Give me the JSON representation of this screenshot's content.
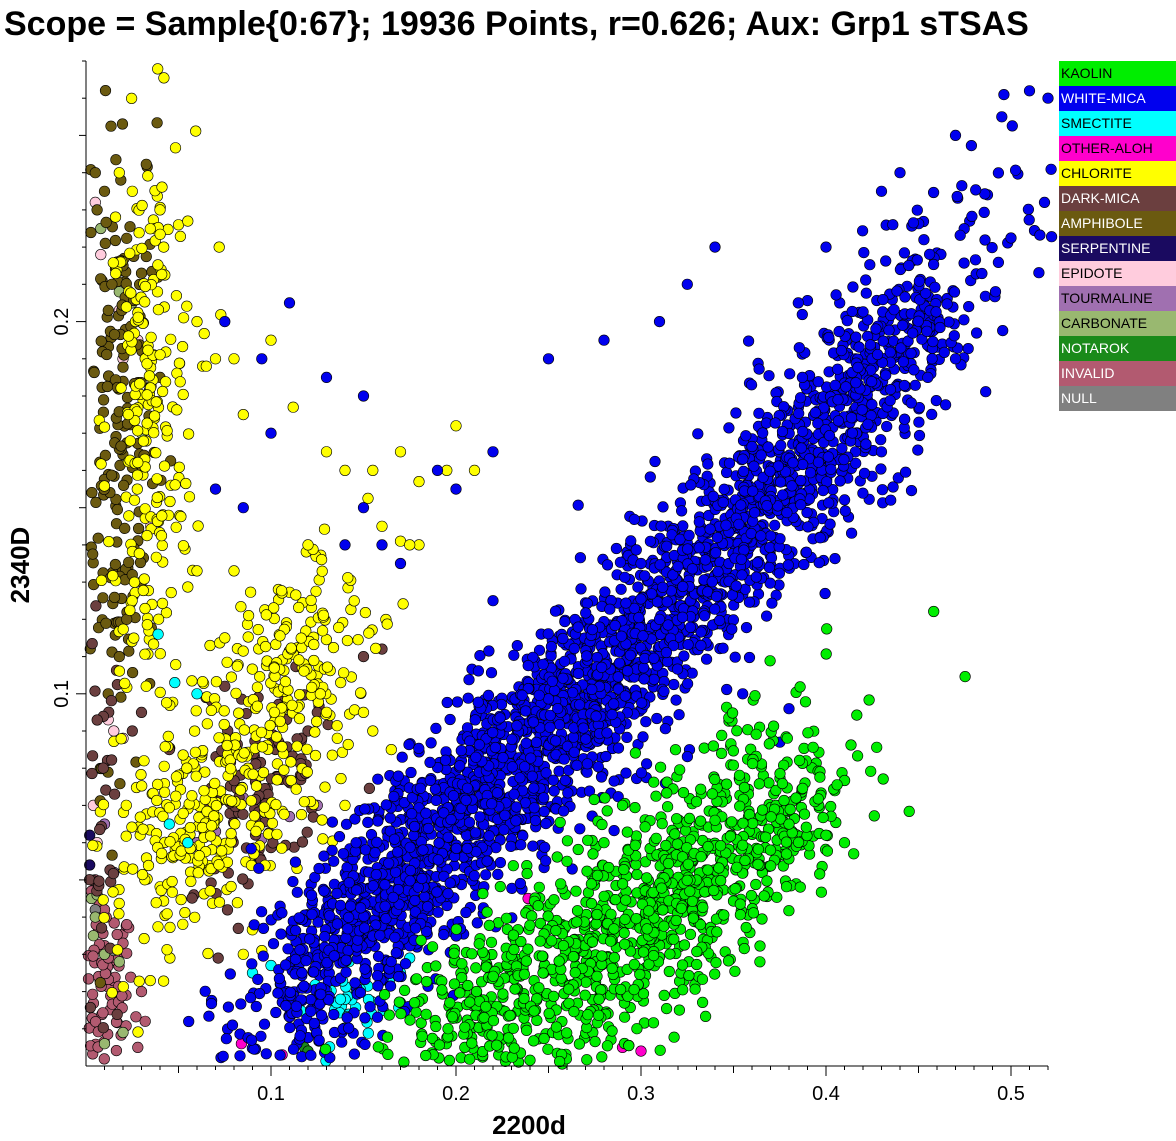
{
  "title": "Scope = Sample{0:67};  19936 Points, r=0.626;  Aux: Grp1 sTSAS",
  "chart_data": {
    "type": "scatter",
    "xlabel": "2200d",
    "ylabel": "2340D",
    "xlim": [
      0.0,
      0.52
    ],
    "ylim": [
      0.0,
      0.27
    ],
    "x_ticks": [
      {
        "value": 0.1,
        "label": "0.1"
      },
      {
        "value": 0.2,
        "label": "0.2"
      },
      {
        "value": 0.3,
        "label": "0.3"
      },
      {
        "value": 0.4,
        "label": "0.4"
      },
      {
        "value": 0.5,
        "label": "0.5"
      }
    ],
    "y_ticks": [
      {
        "value": 0.1,
        "label": "0.1"
      },
      {
        "value": 0.2,
        "label": "0.2"
      }
    ],
    "grid": false,
    "legend_position": "right",
    "series": [
      {
        "name": "KAOLIN",
        "color": "#00ee00",
        "text_color": "#000000",
        "clusters": [
          {
            "cx": 0.3,
            "cy": 0.04,
            "sx": 0.05,
            "sy": 0.015,
            "rot": 0.45,
            "n": 700
          },
          {
            "cx": 0.36,
            "cy": 0.055,
            "sx": 0.035,
            "sy": 0.01,
            "rot": 0.4,
            "n": 220
          },
          {
            "cx": 0.22,
            "cy": 0.02,
            "sx": 0.03,
            "sy": 0.01,
            "rot": 0.3,
            "n": 250
          }
        ],
        "points": [
          [
            0.4,
            0.062
          ],
          [
            0.41,
            0.06
          ],
          [
            0.415,
            0.057
          ],
          [
            0.38,
            0.065
          ],
          [
            0.37,
            0.058
          ],
          [
            0.34,
            0.066
          ],
          [
            0.33,
            0.071
          ],
          [
            0.29,
            0.07
          ],
          [
            0.28,
            0.06
          ],
          [
            0.26,
            0.055
          ],
          [
            0.245,
            0.048
          ]
        ]
      },
      {
        "name": "WHITE-MICA",
        "color": "#0000ee",
        "text_color": "#ffffff",
        "clusters": [
          {
            "cx": 0.26,
            "cy": 0.095,
            "sx": 0.085,
            "sy": 0.013,
            "rot": 0.48,
            "n": 1700
          },
          {
            "cx": 0.4,
            "cy": 0.17,
            "sx": 0.055,
            "sy": 0.013,
            "rot": 0.55,
            "n": 700
          },
          {
            "cx": 0.16,
            "cy": 0.048,
            "sx": 0.045,
            "sy": 0.012,
            "rot": 0.5,
            "n": 500
          }
        ],
        "points": [
          [
            0.51,
            0.262
          ],
          [
            0.52,
            0.26
          ],
          [
            0.495,
            0.255
          ],
          [
            0.47,
            0.25
          ],
          [
            0.44,
            0.24
          ],
          [
            0.43,
            0.235
          ],
          [
            0.4,
            0.22
          ],
          [
            0.385,
            0.205
          ],
          [
            0.34,
            0.22
          ],
          [
            0.325,
            0.21
          ],
          [
            0.31,
            0.2
          ],
          [
            0.28,
            0.195
          ],
          [
            0.25,
            0.19
          ],
          [
            0.15,
            0.18
          ],
          [
            0.13,
            0.185
          ],
          [
            0.11,
            0.205
          ],
          [
            0.075,
            0.2
          ],
          [
            0.095,
            0.19
          ],
          [
            0.1,
            0.17
          ],
          [
            0.07,
            0.155
          ],
          [
            0.085,
            0.15
          ],
          [
            0.14,
            0.14
          ],
          [
            0.16,
            0.14
          ],
          [
            0.17,
            0.135
          ],
          [
            0.2,
            0.155
          ],
          [
            0.19,
            0.16
          ],
          [
            0.22,
            0.165
          ],
          [
            0.43,
            0.165
          ],
          [
            0.435,
            0.152
          ],
          [
            0.375,
            0.087
          ],
          [
            0.355,
            0.1
          ],
          [
            0.38,
            0.096
          ],
          [
            0.47,
            0.19
          ],
          [
            0.455,
            0.185
          ],
          [
            0.31,
            0.12
          ],
          [
            0.3,
            0.135
          ],
          [
            0.22,
            0.125
          ],
          [
            0.15,
            0.15
          ]
        ]
      },
      {
        "name": "SMECTITE",
        "color": "#00ffff",
        "text_color": "#000000",
        "clusters": [
          {
            "cx": 0.145,
            "cy": 0.016,
            "sx": 0.012,
            "sy": 0.005,
            "rot": 0.0,
            "n": 35
          }
        ],
        "points": [
          [
            0.06,
            0.1
          ],
          [
            0.048,
            0.103
          ],
          [
            0.039,
            0.116
          ],
          [
            0.1,
            0.027
          ],
          [
            0.105,
            0.022
          ],
          [
            0.09,
            0.025
          ],
          [
            0.16,
            0.023
          ],
          [
            0.17,
            0.025
          ],
          [
            0.175,
            0.029
          ],
          [
            0.055,
            0.06
          ],
          [
            0.045,
            0.065
          ]
        ]
      },
      {
        "name": "OTHER-ALOH",
        "color": "#ff00cc",
        "text_color": "#000000",
        "clusters": [],
        "points": [
          [
            0.084,
            0.006
          ],
          [
            0.106,
            0.003
          ],
          [
            0.239,
            0.045
          ],
          [
            0.29,
            0.005
          ],
          [
            0.3,
            0.004
          ]
        ]
      },
      {
        "name": "CHLORITE",
        "color": "#ffff00",
        "text_color": "#000000",
        "clusters": [
          {
            "cx": 0.035,
            "cy": 0.17,
            "sx": 0.012,
            "sy": 0.04,
            "rot": 0.0,
            "n": 230
          },
          {
            "cx": 0.06,
            "cy": 0.065,
            "sx": 0.025,
            "sy": 0.015,
            "rot": 0.5,
            "n": 260
          },
          {
            "cx": 0.115,
            "cy": 0.105,
            "sx": 0.022,
            "sy": 0.015,
            "rot": 0.6,
            "n": 200
          }
        ],
        "points": [
          [
            0.018,
            0.24
          ],
          [
            0.025,
            0.235
          ],
          [
            0.04,
            0.23
          ],
          [
            0.05,
            0.226
          ],
          [
            0.055,
            0.227
          ],
          [
            0.042,
            0.22
          ],
          [
            0.06,
            0.2
          ],
          [
            0.065,
            0.188
          ],
          [
            0.07,
            0.19
          ],
          [
            0.085,
            0.175
          ],
          [
            0.1,
            0.195
          ],
          [
            0.112,
            0.177
          ],
          [
            0.13,
            0.165
          ],
          [
            0.14,
            0.16
          ],
          [
            0.155,
            0.16
          ],
          [
            0.17,
            0.165
          ],
          [
            0.18,
            0.157
          ],
          [
            0.2,
            0.172
          ],
          [
            0.21,
            0.16
          ],
          [
            0.195,
            0.16
          ],
          [
            0.16,
            0.145
          ],
          [
            0.17,
            0.141
          ],
          [
            0.18,
            0.14
          ],
          [
            0.175,
            0.14
          ],
          [
            0.08,
            0.133
          ],
          [
            0.06,
            0.133
          ],
          [
            0.075,
            0.115
          ],
          [
            0.072,
            0.22
          ],
          [
            0.08,
            0.19
          ],
          [
            0.12,
            0.14
          ],
          [
            0.15,
            0.095
          ],
          [
            0.155,
            0.09
          ],
          [
            0.165,
            0.085
          ],
          [
            0.14,
            0.07
          ],
          [
            0.128,
            0.061
          ],
          [
            0.118,
            0.071
          ],
          [
            0.085,
            0.03
          ],
          [
            0.095,
            0.031
          ]
        ]
      },
      {
        "name": "DARK-MICA",
        "color": "#6b3f3f",
        "text_color": "#ffffff",
        "clusters": [
          {
            "cx": 0.095,
            "cy": 0.072,
            "sx": 0.022,
            "sy": 0.012,
            "rot": 0.6,
            "n": 110
          },
          {
            "cx": 0.008,
            "cy": 0.06,
            "sx": 0.006,
            "sy": 0.03,
            "rot": 0.0,
            "n": 35
          }
        ],
        "points": [
          [
            0.068,
            0.098
          ],
          [
            0.075,
            0.102
          ],
          [
            0.15,
            0.11
          ],
          [
            0.16,
            0.112
          ],
          [
            0.055,
            0.08
          ],
          [
            0.045,
            0.085
          ],
          [
            0.12,
            0.09
          ],
          [
            0.125,
            0.095
          ],
          [
            0.03,
            0.095
          ],
          [
            0.025,
            0.09
          ]
        ]
      },
      {
        "name": "AMPHIBOLE",
        "color": "#6b5a10",
        "text_color": "#ffffff",
        "clusters": [
          {
            "cx": 0.018,
            "cy": 0.175,
            "sx": 0.01,
            "sy": 0.045,
            "rot": 0.0,
            "n": 200
          }
        ],
        "points": [
          [
            0.006,
            0.23
          ],
          [
            0.01,
            0.235
          ],
          [
            0.014,
            0.21
          ],
          [
            0.02,
            0.215
          ],
          [
            0.03,
            0.213
          ],
          [
            0.035,
            0.19
          ],
          [
            0.04,
            0.185
          ],
          [
            0.022,
            0.12
          ],
          [
            0.018,
            0.11
          ],
          [
            0.012,
            0.1
          ],
          [
            0.03,
            0.13
          ],
          [
            0.025,
            0.132
          ],
          [
            0.005,
            0.24
          ]
        ]
      },
      {
        "name": "SERPENTINE",
        "color": "#1a0a60",
        "text_color": "#ffffff",
        "clusters": [],
        "points": [
          [
            0.001,
            0.058
          ],
          [
            0.002,
            0.062
          ],
          [
            0.001,
            0.05
          ],
          [
            0.002,
            0.054
          ]
        ]
      },
      {
        "name": "EPIDOTE",
        "color": "#ffccdd",
        "text_color": "#000000",
        "clusters": [],
        "points": [
          [
            0.005,
            0.232
          ],
          [
            0.008,
            0.218
          ],
          [
            0.018,
            0.203
          ],
          [
            0.02,
            0.19
          ],
          [
            0.028,
            0.195
          ],
          [
            0.032,
            0.148
          ],
          [
            0.035,
            0.145
          ],
          [
            0.015,
            0.09
          ],
          [
            0.012,
            0.093
          ],
          [
            0.02,
            0.088
          ],
          [
            0.004,
            0.07
          ],
          [
            0.006,
            0.06
          ]
        ]
      },
      {
        "name": "TOURMALINE",
        "color": "#a070b0",
        "text_color": "#000000",
        "clusters": [],
        "points": [
          [
            0.01,
            0.065
          ],
          [
            0.015,
            0.052
          ],
          [
            0.07,
            0.063
          ],
          [
            0.06,
            0.06
          ],
          [
            0.085,
            0.072
          ],
          [
            0.11,
            0.067
          ],
          [
            0.125,
            0.07
          ],
          [
            0.095,
            0.061
          ]
        ]
      },
      {
        "name": "CARBONATE",
        "color": "#99b870",
        "text_color": "#000000",
        "clusters": [],
        "points": [
          [
            0.001,
            0.225
          ],
          [
            0.008,
            0.225
          ],
          [
            0.018,
            0.208
          ],
          [
            0.022,
            0.197
          ],
          [
            0.025,
            0.205
          ],
          [
            0.03,
            0.17
          ],
          [
            0.028,
            0.16
          ],
          [
            0.005,
            0.04
          ],
          [
            0.004,
            0.035
          ],
          [
            0.01,
            0.03
          ],
          [
            0.018,
            0.028
          ],
          [
            0.02,
            0.009
          ],
          [
            0.01,
            0.006
          ],
          [
            0.003,
            0.045
          ],
          [
            0.006,
            0.046
          ]
        ]
      },
      {
        "name": "NOTAROK",
        "color": "#1a8a1a",
        "text_color": "#ffffff",
        "clusters": [],
        "points": [
          [
            0.118,
            0.005
          ],
          [
            0.12,
            0.004
          ]
        ]
      },
      {
        "name": "INVALID",
        "color": "#b25a70",
        "text_color": "#ffffff",
        "clusters": [
          {
            "cx": 0.01,
            "cy": 0.02,
            "sx": 0.008,
            "sy": 0.012,
            "rot": 0.0,
            "n": 90
          }
        ],
        "points": [
          [
            0.003,
            0.047
          ],
          [
            0.01,
            0.042
          ],
          [
            0.02,
            0.033
          ],
          [
            0.03,
            0.02
          ],
          [
            0.028,
            0.005
          ],
          [
            0.032,
            0.012
          ]
        ]
      },
      {
        "name": "NULL",
        "color": "#808080",
        "text_color": "#ffffff",
        "clusters": [],
        "points": [
          [
            0.005,
            0.042
          ],
          [
            0.015,
            0.031
          ]
        ]
      }
    ]
  }
}
